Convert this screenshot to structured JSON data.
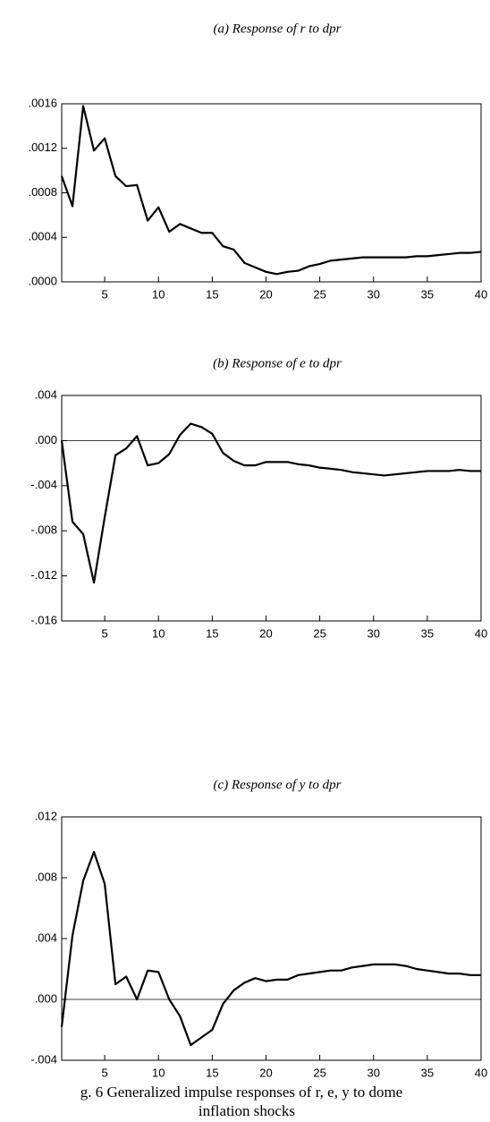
{
  "chart_data": [
    {
      "type": "line",
      "title": "(a) Response of r to dpr",
      "color": "#000000",
      "x": [
        1,
        2,
        3,
        4,
        5,
        6,
        7,
        8,
        9,
        10,
        11,
        12,
        13,
        14,
        15,
        16,
        17,
        18,
        19,
        20,
        21,
        22,
        23,
        24,
        25,
        26,
        27,
        28,
        29,
        30,
        31,
        32,
        33,
        34,
        35,
        36,
        37,
        38,
        39,
        40
      ],
      "values": [
        0.00095,
        0.00068,
        0.00158,
        0.00118,
        0.00129,
        0.00095,
        0.00086,
        0.00087,
        0.00055,
        0.00067,
        0.00045,
        0.00052,
        0.00048,
        0.00044,
        0.00044,
        0.00032,
        0.00029,
        0.00017,
        0.00013,
        9e-05,
        7e-05,
        9e-05,
        0.0001,
        0.00014,
        0.00016,
        0.00019,
        0.0002,
        0.00021,
        0.00022,
        0.00022,
        0.00022,
        0.00022,
        0.00022,
        0.00023,
        0.00023,
        0.00024,
        0.00025,
        0.00026,
        0.00026,
        0.00027
      ],
      "xlim": [
        1,
        40
      ],
      "xticks": [
        5,
        10,
        15,
        20,
        25,
        30,
        35,
        40
      ],
      "ylim": [
        0,
        0.0016
      ],
      "yticks": [
        {
          "value": 0,
          "label": ".0000"
        },
        {
          "value": 0.0004,
          "label": ".0004"
        },
        {
          "value": 0.0008,
          "label": ".0008"
        },
        {
          "value": 0.0012,
          "label": ".0012"
        },
        {
          "value": 0.0016,
          "label": ".0016"
        }
      ],
      "zero_line": false
    },
    {
      "type": "line",
      "title": "(b) Response of e to dpr",
      "color": "#000000",
      "x": [
        1,
        2,
        3,
        4,
        5,
        6,
        7,
        8,
        9,
        10,
        11,
        12,
        13,
        14,
        15,
        16,
        17,
        18,
        19,
        20,
        21,
        22,
        23,
        24,
        25,
        26,
        27,
        28,
        29,
        30,
        31,
        32,
        33,
        34,
        35,
        36,
        37,
        38,
        39,
        40
      ],
      "values": [
        0.0,
        -0.0072,
        -0.0083,
        -0.0126,
        -0.0068,
        -0.0013,
        -0.0007,
        0.0004,
        -0.0022,
        -0.002,
        -0.0012,
        0.0005,
        0.0015,
        0.0012,
        0.0006,
        -0.0011,
        -0.0018,
        -0.0022,
        -0.0022,
        -0.0019,
        -0.0019,
        -0.0019,
        -0.0021,
        -0.0022,
        -0.0024,
        -0.0025,
        -0.0026,
        -0.0028,
        -0.0029,
        -0.003,
        -0.0031,
        -0.003,
        -0.0029,
        -0.0028,
        -0.0027,
        -0.0027,
        -0.0027,
        -0.0026,
        -0.0027,
        -0.0027
      ],
      "xlim": [
        1,
        40
      ],
      "xticks": [
        5,
        10,
        15,
        20,
        25,
        30,
        35,
        40
      ],
      "ylim": [
        -0.016,
        0.004
      ],
      "yticks": [
        {
          "value": -0.016,
          "label": "-.016"
        },
        {
          "value": -0.012,
          "label": "-.012"
        },
        {
          "value": -0.008,
          "label": "-.008"
        },
        {
          "value": -0.004,
          "label": "-.004"
        },
        {
          "value": 0,
          "label": ".000"
        },
        {
          "value": 0.004,
          "label": ".004"
        }
      ],
      "zero_line": true
    },
    {
      "type": "line",
      "title": "(c) Response of y to dpr",
      "color": "#000000",
      "x": [
        1,
        2,
        3,
        4,
        5,
        6,
        7,
        8,
        9,
        10,
        11,
        12,
        13,
        14,
        15,
        16,
        17,
        18,
        19,
        20,
        21,
        22,
        23,
        24,
        25,
        26,
        27,
        28,
        29,
        30,
        31,
        32,
        33,
        34,
        35,
        36,
        37,
        38,
        39,
        40
      ],
      "values": [
        -0.0018,
        0.0042,
        0.0078,
        0.0097,
        0.0076,
        0.001,
        0.0015,
        0.0,
        0.0019,
        0.0018,
        0.0,
        -0.0011,
        -0.003,
        -0.0025,
        -0.002,
        -0.0003,
        0.0006,
        0.0011,
        0.0014,
        0.0012,
        0.0013,
        0.0013,
        0.0016,
        0.0017,
        0.0018,
        0.0019,
        0.0019,
        0.0021,
        0.0022,
        0.0023,
        0.0023,
        0.0023,
        0.0022,
        0.002,
        0.0019,
        0.0018,
        0.0017,
        0.0017,
        0.0016,
        0.0016
      ],
      "xlim": [
        1,
        40
      ],
      "xticks": [
        5,
        10,
        15,
        20,
        25,
        30,
        35,
        40
      ],
      "ylim": [
        -0.004,
        0.012
      ],
      "yticks": [
        {
          "value": -0.004,
          "label": "-.004"
        },
        {
          "value": 0,
          "label": ".000"
        },
        {
          "value": 0.004,
          "label": ".004"
        },
        {
          "value": 0.008,
          "label": ".008"
        },
        {
          "value": 0.012,
          "label": ".012"
        }
      ],
      "zero_line": true
    }
  ],
  "caption": [
    "g. 6 Generalized impulse responses of r, e, y to dome",
    "inflation shocks"
  ]
}
